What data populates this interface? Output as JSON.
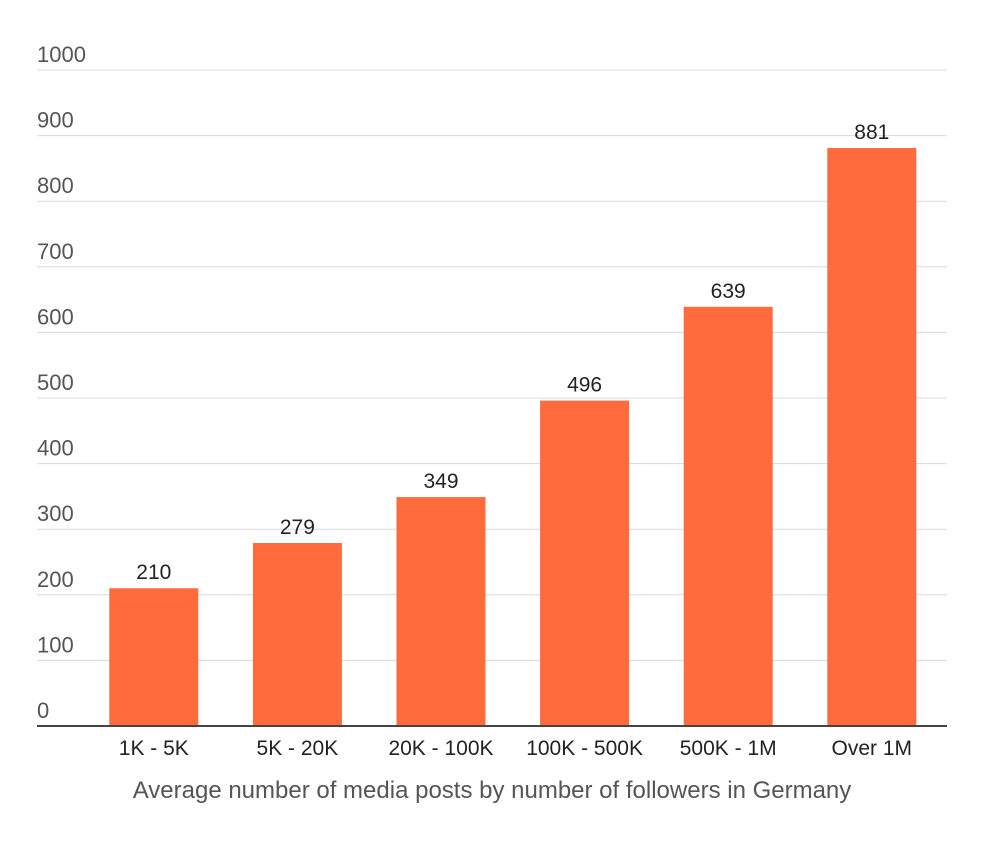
{
  "chart_data": {
    "type": "bar",
    "categories": [
      "1K - 5K",
      "5K - 20K",
      "20K - 100K",
      "100K - 500K",
      "500K - 1M",
      "Over 1M"
    ],
    "values": [
      210,
      279,
      349,
      496,
      639,
      881
    ],
    "data_labels": [
      "210",
      "279",
      "349",
      "496",
      "639",
      "881"
    ],
    "y_ticks": [
      "0",
      "100",
      "200",
      "300",
      "400",
      "500",
      "600",
      "700",
      "800",
      "900",
      "1000"
    ],
    "y_tick_values": [
      0,
      100,
      200,
      300,
      400,
      500,
      600,
      700,
      800,
      900,
      1000
    ],
    "ylim": [
      0,
      1000
    ],
    "grid": true,
    "xlabel": "Average number of media posts by number of followers in Germany",
    "bar_color": "#FF6B3D"
  }
}
